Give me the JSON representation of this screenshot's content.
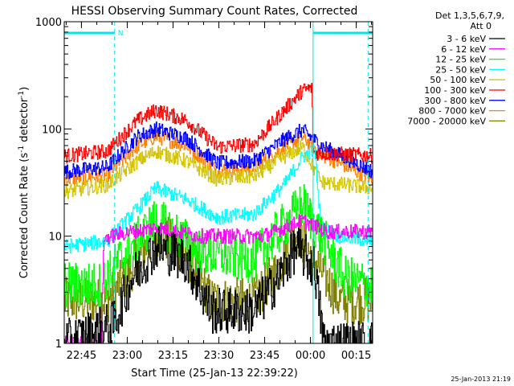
{
  "chart_data": {
    "type": "line",
    "title": "HESSI Observing Summary Count Rates, Corrected",
    "xlabel": "Start Time (25-Jan-13 22:39:22)",
    "ylabel_main": "Corrected Count Rate (s",
    "ylabel_sup": "-1",
    "ylabel_mid": " detector",
    "ylabel_end": ")",
    "y_scale": "log",
    "ylim": [
      1,
      1000
    ],
    "xlim_minutes": [
      0,
      101
    ],
    "x_tick_labels": [
      "22:45",
      "23:00",
      "23:15",
      "23:30",
      "23:45",
      "00:00",
      "00:15"
    ],
    "y_tick_labels": [
      "1",
      "10",
      "100",
      "1000"
    ],
    "legend_header": [
      "Det 1,3,5,6,7,9,",
      "Att 0"
    ],
    "legend_position": "top-right, outside plot",
    "footer_date": "25-Jan-2013 21:19",
    "night_marker": "N",
    "series": [
      {
        "name": "3 - 6 keV",
        "color": "#000000",
        "envelope": [
          [
            0,
            1
          ],
          [
            16,
            1.5
          ],
          [
            22,
            4
          ],
          [
            30,
            8
          ],
          [
            40,
            6
          ],
          [
            48,
            2
          ],
          [
            62,
            2
          ],
          [
            70,
            4
          ],
          [
            76,
            8
          ],
          [
            82,
            5
          ],
          [
            85,
            1
          ],
          [
            101,
            1
          ]
        ]
      },
      {
        "name": "6 - 12 keV",
        "color": "#ff00ff",
        "envelope": [
          [
            0,
            1
          ],
          [
            12,
            1
          ],
          [
            13,
            9.5
          ],
          [
            18,
            10.5
          ],
          [
            30,
            12
          ],
          [
            45,
            10
          ],
          [
            65,
            10
          ],
          [
            78,
            14
          ],
          [
            86,
            11
          ],
          [
            101,
            11
          ]
        ]
      },
      {
        "name": "12 - 25 keV",
        "color": "#00ff00",
        "envelope": [
          [
            0,
            3.5
          ],
          [
            12,
            3.5
          ],
          [
            18,
            6
          ],
          [
            30,
            14
          ],
          [
            45,
            7
          ],
          [
            62,
            6
          ],
          [
            78,
            20
          ],
          [
            85,
            9
          ],
          [
            92,
            4
          ],
          [
            101,
            3.5
          ]
        ]
      },
      {
        "name": "25 - 50 keV",
        "color": "#00ffff",
        "envelope": [
          [
            0,
            8
          ],
          [
            14,
            9
          ],
          [
            24,
            18
          ],
          [
            30,
            28
          ],
          [
            40,
            22
          ],
          [
            50,
            15
          ],
          [
            62,
            16
          ],
          [
            72,
            30
          ],
          [
            78,
            55
          ],
          [
            82,
            65
          ],
          [
            84,
            12
          ],
          [
            90,
            10
          ],
          [
            101,
            9
          ]
        ]
      },
      {
        "name": "50 - 100 keV",
        "color": "#d4c400",
        "envelope": [
          [
            0,
            26
          ],
          [
            14,
            30
          ],
          [
            24,
            50
          ],
          [
            30,
            62
          ],
          [
            40,
            50
          ],
          [
            50,
            34
          ],
          [
            62,
            36
          ],
          [
            72,
            55
          ],
          [
            78,
            68
          ],
          [
            84,
            32
          ],
          [
            101,
            28
          ]
        ]
      },
      {
        "name": "100 - 300 keV",
        "color": "#ff0000",
        "envelope": [
          [
            0,
            56
          ],
          [
            14,
            62
          ],
          [
            24,
            120
          ],
          [
            30,
            150
          ],
          [
            40,
            120
          ],
          [
            50,
            68
          ],
          [
            62,
            72
          ],
          [
            72,
            150
          ],
          [
            78,
            230
          ],
          [
            81,
            240
          ],
          [
            81.5,
            60
          ],
          [
            101,
            56
          ]
        ]
      },
      {
        "name": "300 - 800 keV",
        "color": "#0000ff",
        "envelope": [
          [
            0,
            40
          ],
          [
            14,
            44
          ],
          [
            24,
            85
          ],
          [
            30,
            100
          ],
          [
            40,
            82
          ],
          [
            50,
            48
          ],
          [
            62,
            50
          ],
          [
            72,
            80
          ],
          [
            78,
            98
          ],
          [
            84,
            70
          ],
          [
            101,
            40
          ]
        ]
      },
      {
        "name": "800 - 7000 keV",
        "color": "#ff8000",
        "envelope": [
          [
            0,
            34
          ],
          [
            14,
            37
          ],
          [
            24,
            70
          ],
          [
            30,
            85
          ],
          [
            40,
            70
          ],
          [
            50,
            41
          ],
          [
            62,
            43
          ],
          [
            72,
            68
          ],
          [
            78,
            84
          ],
          [
            84,
            58
          ],
          [
            101,
            34
          ]
        ]
      },
      {
        "name": "7000 - 20000 keV",
        "color": "#808000",
        "envelope": [
          [
            0,
            2.5
          ],
          [
            14,
            2.5
          ],
          [
            22,
            5
          ],
          [
            30,
            11
          ],
          [
            40,
            7
          ],
          [
            48,
            2.5
          ],
          [
            62,
            2.5
          ],
          [
            70,
            5
          ],
          [
            76,
            11
          ],
          [
            82,
            6
          ],
          [
            90,
            2.5
          ],
          [
            101,
            2.5
          ]
        ]
      }
    ]
  }
}
